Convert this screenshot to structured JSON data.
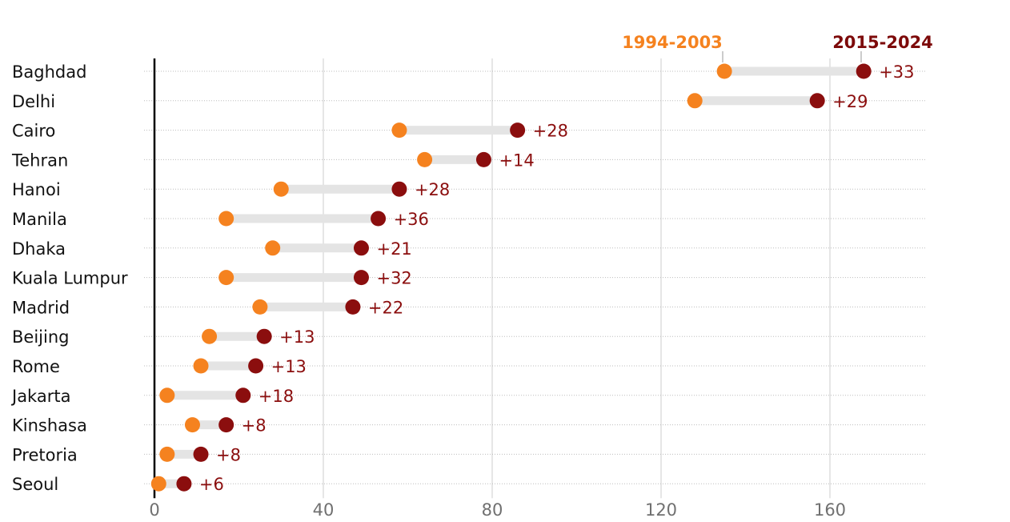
{
  "colors": {
    "early": "#f5821f",
    "recent": "#8b0e0e",
    "connector": "#e4e4e4",
    "grid": "#cccccc",
    "axis": "#000000"
  },
  "chart_data": {
    "type": "dumbbell",
    "title": "",
    "xlabel": "",
    "ylabel": "",
    "xlim": [
      0,
      180
    ],
    "x_ticks": [
      0,
      40,
      80,
      120,
      160
    ],
    "x_tick_labels": [
      "0",
      "40",
      "80",
      "120",
      "160"
    ],
    "legend": {
      "series1": "1994-2003",
      "series2": "2015-2024",
      "placement": "top-right"
    },
    "series": [
      {
        "name": "1994-2003",
        "color": "#f5821f"
      },
      {
        "name": "2015-2024",
        "color": "#8b0e0e"
      }
    ],
    "categories": [
      "Baghdad",
      "Delhi",
      "Cairo",
      "Tehran",
      "Hanoi",
      "Manila",
      "Dhaka",
      "Kuala Lumpur",
      "Madrid",
      "Beijing",
      "Rome",
      "Jakarta",
      "Kinshasa",
      "Pretoria",
      "Seoul"
    ],
    "values_1994_2003": [
      135,
      128,
      58,
      64,
      30,
      17,
      28,
      17,
      25,
      13,
      11,
      3,
      9,
      3,
      1
    ],
    "values_2015_2024": [
      168,
      157,
      86,
      78,
      58,
      53,
      49,
      49,
      47,
      26,
      24,
      21,
      17,
      11,
      7
    ],
    "change_labels": [
      "+33",
      "+29",
      "+28",
      "+14",
      "+28",
      "+36",
      "+21",
      "+32",
      "+22",
      "+13",
      "+13",
      "+18",
      "+8",
      "+8",
      "+6"
    ]
  }
}
